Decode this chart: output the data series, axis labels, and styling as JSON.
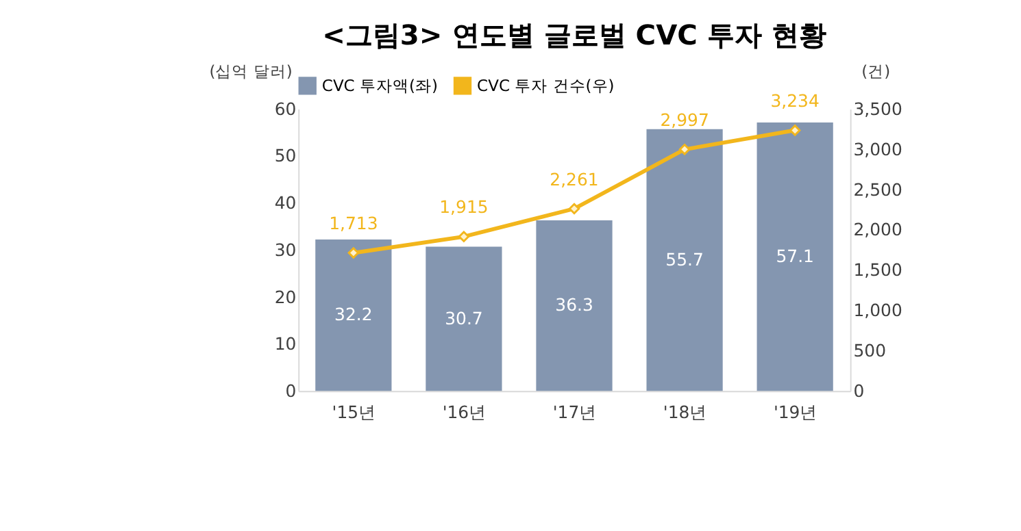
{
  "chart_data": {
    "type": "bar",
    "title": "<그림3> 연도별 글로벌 CVC 투자 현황",
    "categories": [
      "'15년",
      "'16년",
      "'17년",
      "'18년",
      "'19년"
    ],
    "series": [
      {
        "name": "CVC 투자액(좌)",
        "color": "#8496b0",
        "values": [
          32.2,
          30.7,
          36.3,
          55.7,
          57.1
        ]
      },
      {
        "name": "CVC 투자 건수(우)",
        "type": "line",
        "axis": "y2",
        "color": "#f2b61c",
        "marker": "diamond",
        "values": [
          1713,
          1915,
          2261,
          2997,
          3234
        ],
        "value_labels": [
          "1,713",
          "1,915",
          "2,261",
          "2,997",
          "3,234"
        ]
      }
    ],
    "ylabel": "(십억 달러)",
    "y2label": "(건)",
    "ylim": [
      0,
      60
    ],
    "yticks": [
      0,
      10,
      20,
      30,
      40,
      50,
      60
    ],
    "y2lim": [
      0,
      3500
    ],
    "y2ticks": [
      {
        "value": 0,
        "label": "0"
      },
      {
        "value": 500,
        "label": "500"
      },
      {
        "value": 1000,
        "label": "1,000"
      },
      {
        "value": 1500,
        "label": "1,500"
      },
      {
        "value": 2000,
        "label": "2,000"
      },
      {
        "value": 2500,
        "label": "2,500"
      },
      {
        "value": 3000,
        "label": "3,000"
      },
      {
        "value": 3500,
        "label": "3,500"
      }
    ],
    "data_labels": true,
    "grid": false,
    "legend": "top"
  }
}
